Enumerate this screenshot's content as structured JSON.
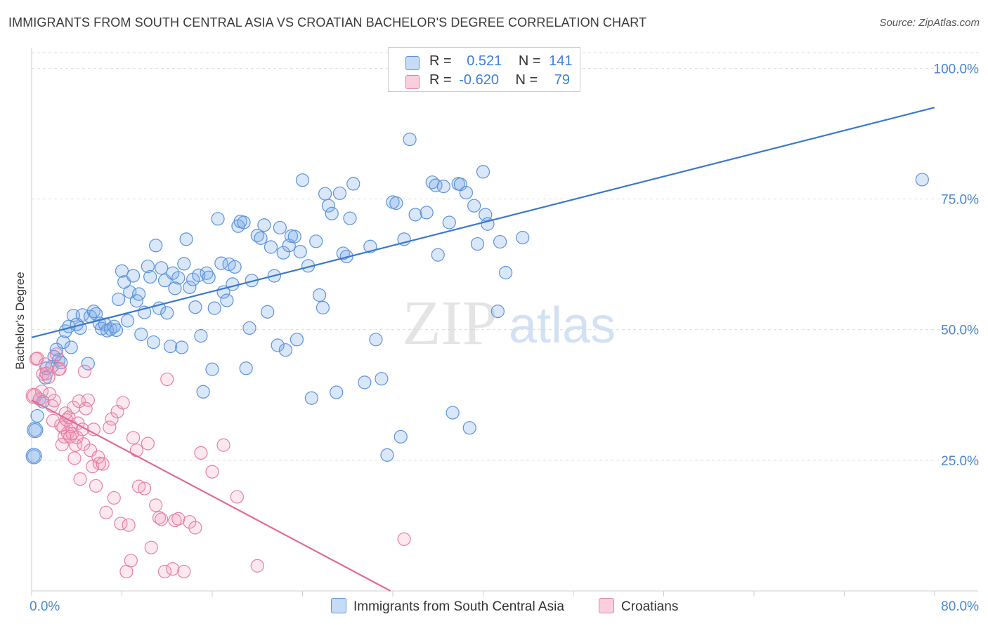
{
  "header": {
    "title": "IMMIGRANTS FROM SOUTH CENTRAL ASIA VS CROATIAN BACHELOR'S DEGREE CORRELATION CHART",
    "source": "Source: ZipAtlas.com"
  },
  "watermark": {
    "zip": "ZIP",
    "atlas": "atlas"
  },
  "legend": {
    "rows": [
      {
        "r_label": "R =",
        "r_value": "0.521",
        "n_label": "N =",
        "n_value": "141",
        "color": "#a9c8f0"
      },
      {
        "r_label": "R =",
        "r_value": "-0.620",
        "n_label": "N =",
        "n_value": "79",
        "color": "#f5b3c9"
      }
    ]
  },
  "bottom_legend": {
    "items": [
      {
        "label": "Immigrants from South Central Asia",
        "color": "#a9c8f0"
      },
      {
        "label": "Croatians",
        "color": "#f5b3c9"
      }
    ]
  },
  "chart_data": {
    "type": "scatter",
    "title": "IMMIGRANTS FROM SOUTH CENTRAL ASIA VS CROATIAN BACHELOR'S DEGREE CORRELATION CHART",
    "xlabel": "",
    "ylabel": "Bachelor's Degree",
    "xlim": [
      0,
      80
    ],
    "ylim": [
      0,
      103
    ],
    "x_tick_labels": [
      {
        "value": 0,
        "label": "0.0%"
      },
      {
        "value": 80,
        "label": "80.0%"
      }
    ],
    "y_tick_labels": [
      {
        "value": 25,
        "label": "25.0%"
      },
      {
        "value": 50,
        "label": "50.0%"
      },
      {
        "value": 75,
        "label": "75.0%"
      },
      {
        "value": 100,
        "label": "100.0%"
      }
    ],
    "series": [
      {
        "name": "Immigrants from South Central Asia",
        "color": "#5b93db",
        "fill": "rgba(120,170,235,0.28)",
        "trend": {
          "x": [
            0,
            80
          ],
          "y": [
            48.5,
            92.5
          ],
          "color": "#3a78cc"
        },
        "points": [
          [
            0.2,
            25.8
          ],
          [
            0.3,
            30.8
          ],
          [
            0.5,
            33.5
          ],
          [
            0.7,
            36.7
          ],
          [
            1.0,
            36.2
          ],
          [
            1.2,
            40.8
          ],
          [
            1.3,
            42.6
          ],
          [
            1.8,
            42.9
          ],
          [
            2.0,
            44.8
          ],
          [
            2.2,
            46.2
          ],
          [
            2.4,
            44.2
          ],
          [
            2.6,
            43.7
          ],
          [
            2.8,
            47.6
          ],
          [
            3.0,
            49.7
          ],
          [
            3.3,
            50.6
          ],
          [
            3.5,
            46.6
          ],
          [
            3.7,
            52.7
          ],
          [
            4.0,
            51.0
          ],
          [
            4.3,
            50.3
          ],
          [
            4.5,
            52.8
          ],
          [
            5.0,
            43.5
          ],
          [
            5.2,
            52.5
          ],
          [
            5.5,
            53.5
          ],
          [
            5.7,
            53.0
          ],
          [
            6.0,
            51.2
          ],
          [
            6.2,
            50.2
          ],
          [
            6.5,
            51.0
          ],
          [
            6.7,
            49.8
          ],
          [
            7.0,
            50.1
          ],
          [
            7.3,
            50.6
          ],
          [
            7.5,
            49.9
          ],
          [
            7.7,
            55.8
          ],
          [
            8.0,
            61.2
          ],
          [
            8.2,
            59.1
          ],
          [
            8.5,
            51.7
          ],
          [
            8.7,
            57.2
          ],
          [
            9.0,
            60.3
          ],
          [
            9.3,
            55.5
          ],
          [
            9.5,
            56.8
          ],
          [
            9.7,
            49.1
          ],
          [
            10.0,
            53.3
          ],
          [
            10.3,
            62.1
          ],
          [
            10.5,
            60.1
          ],
          [
            10.8,
            47.6
          ],
          [
            11.0,
            66.1
          ],
          [
            11.3,
            54.1
          ],
          [
            11.5,
            61.8
          ],
          [
            11.8,
            59.4
          ],
          [
            12.0,
            53.2
          ],
          [
            12.3,
            46.8
          ],
          [
            12.5,
            60.8
          ],
          [
            12.7,
            57.9
          ],
          [
            13.0,
            59.9
          ],
          [
            13.3,
            46.6
          ],
          [
            13.5,
            62.6
          ],
          [
            13.7,
            67.3
          ],
          [
            14.0,
            58.1
          ],
          [
            14.3,
            59.6
          ],
          [
            14.5,
            54.3
          ],
          [
            14.8,
            60.4
          ],
          [
            15.0,
            48.8
          ],
          [
            15.2,
            38.1
          ],
          [
            15.5,
            60.8
          ],
          [
            15.7,
            60.0
          ],
          [
            16.0,
            42.4
          ],
          [
            16.2,
            54.1
          ],
          [
            16.5,
            71.2
          ],
          [
            16.8,
            62.7
          ],
          [
            17.0,
            57.2
          ],
          [
            17.3,
            55.6
          ],
          [
            17.5,
            62.5
          ],
          [
            17.8,
            58.7
          ],
          [
            18.0,
            62.0
          ],
          [
            18.3,
            69.8
          ],
          [
            18.5,
            70.7
          ],
          [
            18.8,
            70.5
          ],
          [
            19.0,
            42.6
          ],
          [
            19.3,
            50.3
          ],
          [
            19.5,
            59.4
          ],
          [
            20.0,
            68.0
          ],
          [
            20.3,
            67.5
          ],
          [
            20.6,
            70.0
          ],
          [
            20.9,
            53.4
          ],
          [
            21.2,
            65.8
          ],
          [
            21.5,
            60.3
          ],
          [
            21.8,
            47.0
          ],
          [
            22.0,
            69.5
          ],
          [
            22.3,
            64.7
          ],
          [
            22.5,
            46.1
          ],
          [
            22.8,
            66.1
          ],
          [
            23.0,
            67.9
          ],
          [
            23.3,
            67.8
          ],
          [
            23.5,
            48.1
          ],
          [
            23.8,
            64.9
          ],
          [
            24.0,
            78.6
          ],
          [
            24.5,
            62.2
          ],
          [
            24.8,
            36.9
          ],
          [
            25.2,
            66.9
          ],
          [
            25.5,
            56.6
          ],
          [
            25.8,
            54.2
          ],
          [
            26.0,
            76.0
          ],
          [
            26.3,
            73.7
          ],
          [
            26.6,
            72.2
          ],
          [
            27.0,
            38.0
          ],
          [
            27.3,
            76.1
          ],
          [
            27.6,
            64.6
          ],
          [
            27.9,
            64.0
          ],
          [
            28.2,
            71.3
          ],
          [
            28.5,
            77.9
          ],
          [
            29.5,
            39.9
          ],
          [
            30.0,
            65.9
          ],
          [
            30.5,
            48.1
          ],
          [
            31.0,
            40.6
          ],
          [
            31.5,
            26.0
          ],
          [
            32.0,
            74.4
          ],
          [
            32.3,
            74.2
          ],
          [
            32.7,
            29.5
          ],
          [
            33.0,
            67.3
          ],
          [
            33.5,
            86.4
          ],
          [
            34.0,
            72.0
          ],
          [
            35.0,
            72.4
          ],
          [
            35.5,
            78.2
          ],
          [
            35.8,
            77.6
          ],
          [
            36.0,
            64.3
          ],
          [
            36.5,
            77.4
          ],
          [
            37.0,
            70.5
          ],
          [
            37.3,
            34.1
          ],
          [
            37.8,
            77.9
          ],
          [
            38.0,
            77.8
          ],
          [
            38.5,
            76.2
          ],
          [
            38.8,
            31.2
          ],
          [
            39.2,
            73.7
          ],
          [
            39.5,
            66.4
          ],
          [
            40.0,
            80.2
          ],
          [
            40.2,
            72.0
          ],
          [
            40.4,
            70.2
          ],
          [
            41.3,
            53.5
          ],
          [
            41.5,
            66.8
          ],
          [
            42.0,
            60.9
          ],
          [
            43.5,
            67.6
          ],
          [
            78.9,
            78.7
          ]
        ]
      },
      {
        "name": "Croatians",
        "color": "#e77fa3",
        "fill": "rgba(240,150,180,0.22)",
        "trend": {
          "x": [
            0,
            31.8
          ],
          "y": [
            36.5,
            0
          ],
          "color": "#e06b96"
        },
        "points": [
          [
            0.2,
            37.3
          ],
          [
            0.4,
            44.4
          ],
          [
            0.5,
            44.5
          ],
          [
            0.7,
            36.7
          ],
          [
            0.9,
            38.2
          ],
          [
            1.0,
            41.5
          ],
          [
            1.2,
            43.4
          ],
          [
            1.3,
            41.6
          ],
          [
            1.5,
            40.9
          ],
          [
            1.6,
            37.7
          ],
          [
            1.8,
            35.4
          ],
          [
            1.9,
            32.6
          ],
          [
            2.0,
            36.4
          ],
          [
            2.2,
            45.3
          ],
          [
            2.4,
            42.4
          ],
          [
            2.5,
            42.5
          ],
          [
            2.6,
            31.7
          ],
          [
            2.7,
            28.0
          ],
          [
            2.8,
            31.3
          ],
          [
            2.9,
            29.5
          ],
          [
            3.0,
            34.0
          ],
          [
            3.1,
            32.7
          ],
          [
            3.2,
            30.2
          ],
          [
            3.3,
            33.2
          ],
          [
            3.4,
            29.5
          ],
          [
            3.5,
            31.5
          ],
          [
            3.6,
            30.1
          ],
          [
            3.7,
            35.1
          ],
          [
            3.8,
            25.4
          ],
          [
            3.9,
            27.9
          ],
          [
            4.0,
            29.4
          ],
          [
            4.1,
            32.1
          ],
          [
            4.2,
            36.3
          ],
          [
            4.3,
            21.4
          ],
          [
            4.5,
            30.9
          ],
          [
            4.6,
            28.1
          ],
          [
            4.7,
            42.0
          ],
          [
            4.8,
            34.9
          ],
          [
            5.0,
            36.5
          ],
          [
            5.2,
            26.9
          ],
          [
            5.4,
            23.8
          ],
          [
            5.5,
            30.9
          ],
          [
            5.7,
            20.1
          ],
          [
            5.9,
            25.6
          ],
          [
            6.0,
            24.4
          ],
          [
            6.3,
            24.3
          ],
          [
            6.6,
            15.0
          ],
          [
            6.9,
            31.3
          ],
          [
            7.1,
            32.9
          ],
          [
            7.3,
            17.8
          ],
          [
            7.6,
            34.3
          ],
          [
            7.9,
            12.9
          ],
          [
            8.1,
            36.0
          ],
          [
            8.4,
            3.7
          ],
          [
            8.6,
            12.6
          ],
          [
            8.8,
            5.8
          ],
          [
            9.0,
            29.3
          ],
          [
            9.3,
            26.9
          ],
          [
            9.5,
            20.0
          ],
          [
            10.0,
            19.6
          ],
          [
            10.3,
            28.2
          ],
          [
            10.6,
            8.3
          ],
          [
            11.0,
            16.4
          ],
          [
            11.3,
            14.0
          ],
          [
            11.5,
            13.7
          ],
          [
            11.8,
            3.7
          ],
          [
            12.0,
            40.5
          ],
          [
            12.5,
            4.2
          ],
          [
            12.7,
            13.5
          ],
          [
            13.0,
            13.8
          ],
          [
            13.5,
            3.7
          ],
          [
            14.0,
            13.2
          ],
          [
            14.5,
            12.1
          ],
          [
            15.0,
            26.4
          ],
          [
            16.0,
            22.8
          ],
          [
            17.0,
            27.9
          ],
          [
            18.2,
            18.0
          ],
          [
            20.0,
            4.8
          ],
          [
            33.0,
            9.9
          ]
        ]
      }
    ]
  }
}
